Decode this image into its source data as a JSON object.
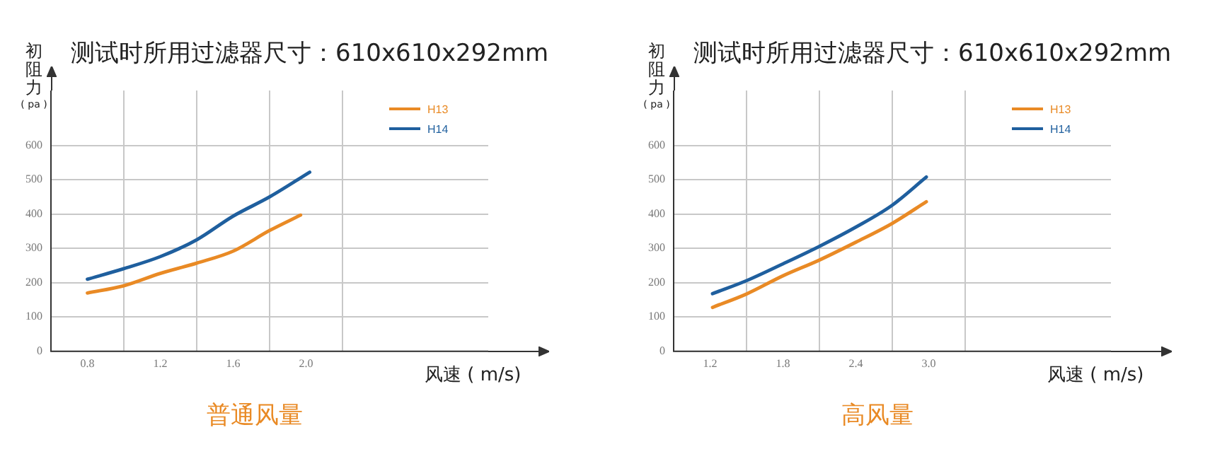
{
  "chart_data": [
    {
      "type": "line",
      "title": "测试时所用过滤器尺寸：610x610x292mm",
      "xlabel": "风速 ( m/s)",
      "ylabel": "初阻力 ( pa )",
      "annotations": [
        "普通风量"
      ],
      "x": [
        0.8,
        1.0,
        1.2,
        1.4,
        1.6,
        1.8,
        1.97
      ],
      "series": [
        {
          "name": "H13",
          "color": "#e98a25",
          "values": [
            170,
            191,
            227,
            257,
            292,
            352,
            397
          ]
        },
        {
          "name": "H14",
          "color": "#1f5f9e",
          "x": [
            0.8,
            1.0,
            1.2,
            1.4,
            1.6,
            1.8,
            2.02
          ],
          "values": [
            210,
            241,
            276,
            325,
            394,
            450,
            522
          ]
        }
      ],
      "xlim": [
        0.6,
        3.0
      ],
      "xticks": [
        0.8,
        {
          "value": 1.0,
          "label": null
        },
        1.2,
        {
          "value": 1.4,
          "label": null
        },
        1.6,
        {
          "value": 1.8,
          "label": null
        },
        {
          "value": 2.0,
          "label": "2.0"
        },
        {
          "value": 2.2,
          "label": null
        }
      ],
      "ylim": [
        0,
        760
      ],
      "yticks": [
        0,
        100,
        200,
        300,
        400,
        500,
        600
      ],
      "grid": true,
      "legend": "top right",
      "marker": "none",
      "line_style": "solid"
    },
    {
      "type": "line",
      "title": "测试时所用过滤器尺寸：610x610x292mm",
      "xlabel": "风速 ( m/s)",
      "ylabel": "初阻力 ( pa )",
      "annotations": [
        "高风量"
      ],
      "x": [
        1.22,
        1.5,
        1.8,
        2.1,
        2.4,
        2.7,
        2.98
      ],
      "series": [
        {
          "name": "H13",
          "color": "#e98a25",
          "values": [
            128,
            167,
            220,
            266,
            318,
            373,
            436
          ]
        },
        {
          "name": "H14",
          "color": "#1f5f9e",
          "values": [
            168,
            206,
            255,
            306,
            362,
            426,
            508
          ]
        }
      ],
      "xlim": [
        0.9,
        4.5
      ],
      "xticks": [
        1.2,
        {
          "value": 1.5,
          "label": null
        },
        1.8,
        {
          "value": 2.1,
          "label": null
        },
        2.4,
        {
          "value": 2.7,
          "label": null
        },
        {
          "value": 3.0,
          "label": "3.0"
        },
        {
          "value": 3.3,
          "label": null
        }
      ],
      "ylim": [
        0,
        760
      ],
      "yticks": [
        0,
        100,
        200,
        300,
        400,
        500,
        600
      ],
      "grid": true,
      "legend": "top right",
      "marker": "none",
      "line_style": "solid"
    }
  ]
}
